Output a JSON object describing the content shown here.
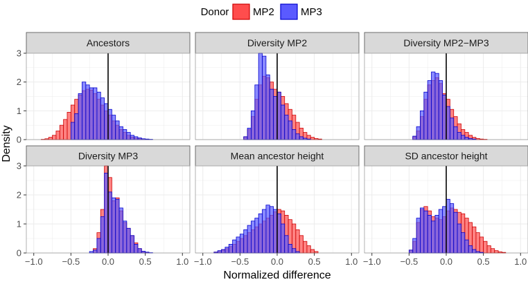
{
  "chart_data": {
    "type": "histogram",
    "xlabel": "Normalized difference",
    "ylabel": "Density",
    "legend": {
      "title": "Donor",
      "position": "top-center",
      "entries": [
        {
          "name": "MP2",
          "fill": "#ff4d4d",
          "stroke": "#cc0000"
        },
        {
          "name": "MP3",
          "fill": "#5a5aff",
          "stroke": "#0000cc"
        }
      ]
    },
    "colors": {
      "strip_bg": "#d9d9d9",
      "strip_border": "#4d4d4d",
      "grid": "#ebebeb",
      "vline": "#000000"
    },
    "xlim": [
      -1.1,
      1.1
    ],
    "ylim": [
      0,
      3.0
    ],
    "xticks": [
      -1.0,
      -0.5,
      0.0,
      0.5,
      1.0
    ],
    "xtick_labels": [
      "−1.0",
      "−0.5",
      "0.0",
      "0.5",
      "1.0"
    ],
    "yticks": [
      0,
      1,
      2,
      3
    ],
    "ytick_labels": [
      "0",
      "1",
      "2",
      "3"
    ],
    "vline_x": 0,
    "bin_width": 0.05,
    "panels": [
      {
        "title": "Ancestors",
        "series": [
          {
            "name": "MP2",
            "bin_starts": [
              -0.9,
              -0.85,
              -0.8,
              -0.75,
              -0.7,
              -0.65,
              -0.6,
              -0.55,
              -0.5,
              -0.45,
              -0.4,
              -0.35,
              -0.3,
              -0.25,
              -0.2,
              -0.15,
              -0.1,
              -0.05,
              0.0,
              0.05,
              0.1,
              0.15,
              0.2,
              0.25,
              0.3,
              0.35,
              0.4,
              0.45,
              0.5
            ],
            "values": [
              0.01,
              0.03,
              0.08,
              0.15,
              0.3,
              0.5,
              0.7,
              0.95,
              1.2,
              1.4,
              1.55,
              1.7,
              1.75,
              1.72,
              1.6,
              1.4,
              1.2,
              1.0,
              0.85,
              0.65,
              0.5,
              0.35,
              0.25,
              0.15,
              0.09,
              0.05,
              0.03,
              0.01,
              0.005
            ]
          },
          {
            "name": "MP3",
            "bin_starts": [
              -0.5,
              -0.45,
              -0.4,
              -0.35,
              -0.3,
              -0.25,
              -0.2,
              -0.15,
              -0.1,
              -0.05,
              0.0,
              0.05,
              0.1,
              0.15,
              0.2,
              0.25,
              0.3,
              0.35,
              0.4,
              0.45,
              0.5,
              0.55
            ],
            "values": [
              0.6,
              0.9,
              1.6,
              2.0,
              1.9,
              1.8,
              1.8,
              1.65,
              1.45,
              1.25,
              1.05,
              0.85,
              0.65,
              0.45,
              0.35,
              0.25,
              0.15,
              0.1,
              0.06,
              0.03,
              0.02,
              0.01
            ]
          }
        ]
      },
      {
        "title": "Diversity MP2",
        "series": [
          {
            "name": "MP2",
            "bin_starts": [
              -0.45,
              -0.4,
              -0.35,
              -0.3,
              -0.25,
              -0.2,
              -0.15,
              -0.1,
              -0.05,
              0.0,
              0.05,
              0.1,
              0.15,
              0.2,
              0.25,
              0.3,
              0.35,
              0.4,
              0.45,
              0.5,
              0.55
            ],
            "values": [
              0.1,
              0.35,
              0.8,
              1.4,
              1.9,
              2.2,
              2.15,
              2.0,
              1.75,
              1.65,
              1.5,
              1.25,
              1.05,
              0.85,
              0.6,
              0.4,
              0.25,
              0.15,
              0.08,
              0.04,
              0.02
            ]
          },
          {
            "name": "MP3",
            "bin_starts": [
              -0.45,
              -0.4,
              -0.35,
              -0.3,
              -0.25,
              -0.2,
              -0.15,
              -0.1,
              -0.05,
              0.0,
              0.05,
              0.1,
              0.15,
              0.2,
              0.25,
              0.3,
              0.35,
              0.4
            ],
            "values": [
              0.1,
              0.4,
              1.0,
              1.9,
              3.1,
              2.9,
              2.25,
              1.75,
              1.5,
              1.65,
              1.2,
              0.85,
              0.65,
              0.35,
              0.2,
              0.1,
              0.05,
              0.02
            ]
          }
        ]
      },
      {
        "title": "Diversity MP2−MP3",
        "series": [
          {
            "name": "MP2",
            "bin_starts": [
              -0.45,
              -0.4,
              -0.35,
              -0.3,
              -0.25,
              -0.2,
              -0.15,
              -0.1,
              -0.05,
              0.0,
              0.05,
              0.1,
              0.15,
              0.2,
              0.25,
              0.3,
              0.35,
              0.4,
              0.45,
              0.5
            ],
            "values": [
              0.1,
              0.3,
              0.8,
              1.4,
              1.9,
              2.05,
              2.15,
              1.95,
              1.6,
              1.4,
              1.05,
              0.8,
              0.55,
              0.35,
              0.25,
              0.15,
              0.08,
              0.04,
              0.02,
              0.01
            ]
          },
          {
            "name": "MP3",
            "bin_starts": [
              -0.45,
              -0.4,
              -0.35,
              -0.3,
              -0.25,
              -0.2,
              -0.15,
              -0.1,
              -0.05,
              0.0,
              0.05,
              0.1,
              0.15,
              0.2,
              0.25,
              0.3,
              0.35
            ],
            "values": [
              0.12,
              0.45,
              1.0,
              1.65,
              2.05,
              2.35,
              2.3,
              2.05,
              1.55,
              1.15,
              0.75,
              0.45,
              0.25,
              0.15,
              0.08,
              0.04,
              0.02
            ]
          }
        ]
      },
      {
        "title": "Diversity MP3",
        "series": [
          {
            "name": "MP2",
            "bin_starts": [
              -0.2,
              -0.15,
              -0.1,
              -0.05,
              0.0,
              0.05,
              0.1,
              0.15,
              0.2,
              0.25,
              0.3,
              0.35,
              0.4,
              0.45,
              0.5
            ],
            "values": [
              0.15,
              0.7,
              1.5,
              3.05,
              2.6,
              1.8,
              1.9,
              1.45,
              1.05,
              0.85,
              0.6,
              0.35,
              0.15,
              0.05,
              0.02
            ]
          },
          {
            "name": "MP3",
            "bin_starts": [
              -0.25,
              -0.2,
              -0.15,
              -0.1,
              -0.05,
              0.0,
              0.05,
              0.1,
              0.15,
              0.2,
              0.25,
              0.3,
              0.35,
              0.4,
              0.45,
              0.5,
              0.55
            ],
            "values": [
              0.05,
              0.1,
              0.5,
              1.25,
              2.75,
              2.1,
              1.9,
              1.85,
              1.55,
              1.1,
              0.85,
              0.6,
              0.3,
              0.15,
              0.06,
              0.03,
              0.01
            ]
          }
        ]
      },
      {
        "title": "Mean ancestor height",
        "series": [
          {
            "name": "MP2",
            "bin_starts": [
              -0.85,
              -0.8,
              -0.75,
              -0.7,
              -0.65,
              -0.6,
              -0.55,
              -0.5,
              -0.45,
              -0.4,
              -0.35,
              -0.3,
              -0.25,
              -0.2,
              -0.15,
              -0.1,
              -0.05,
              0.0,
              0.05,
              0.1,
              0.15,
              0.2,
              0.25,
              0.3,
              0.35,
              0.4,
              0.45,
              0.5
            ],
            "values": [
              0.03,
              0.05,
              0.1,
              0.15,
              0.22,
              0.3,
              0.4,
              0.5,
              0.6,
              0.7,
              0.8,
              0.9,
              1.0,
              1.1,
              1.2,
              1.3,
              1.42,
              1.5,
              1.45,
              1.3,
              1.15,
              1.0,
              0.8,
              0.6,
              0.4,
              0.25,
              0.12,
              0.05
            ]
          },
          {
            "name": "MP3",
            "bin_starts": [
              -0.85,
              -0.8,
              -0.75,
              -0.7,
              -0.65,
              -0.6,
              -0.55,
              -0.5,
              -0.45,
              -0.4,
              -0.35,
              -0.3,
              -0.25,
              -0.2,
              -0.15,
              -0.1,
              -0.05,
              0.0,
              0.05,
              0.1,
              0.15,
              0.2,
              0.25
            ],
            "values": [
              0.03,
              0.08,
              0.12,
              0.2,
              0.3,
              0.45,
              0.55,
              0.65,
              0.8,
              0.95,
              1.1,
              1.2,
              1.35,
              1.5,
              1.65,
              1.6,
              1.5,
              1.35,
              1.0,
              0.6,
              0.3,
              0.15,
              0.05
            ]
          }
        ]
      },
      {
        "title": "SD ancestor height",
        "series": [
          {
            "name": "MP2",
            "bin_starts": [
              -0.5,
              -0.45,
              -0.4,
              -0.35,
              -0.3,
              -0.25,
              -0.2,
              -0.15,
              -0.1,
              -0.05,
              0.0,
              0.05,
              0.1,
              0.15,
              0.2,
              0.25,
              0.3,
              0.35,
              0.4,
              0.45,
              0.5,
              0.55,
              0.6,
              0.65,
              0.7,
              0.75
            ],
            "values": [
              0.1,
              0.4,
              1.05,
              1.5,
              1.6,
              1.45,
              1.25,
              1.2,
              1.15,
              1.25,
              1.45,
              1.55,
              1.5,
              1.4,
              1.35,
              1.2,
              1.05,
              0.9,
              0.7,
              0.55,
              0.4,
              0.25,
              0.15,
              0.08,
              0.04,
              0.02
            ]
          },
          {
            "name": "MP3",
            "bin_starts": [
              -0.5,
              -0.45,
              -0.4,
              -0.35,
              -0.3,
              -0.25,
              -0.2,
              -0.15,
              -0.1,
              -0.05,
              0.0,
              0.05,
              0.1,
              0.15,
              0.2,
              0.25,
              0.3,
              0.35,
              0.4,
              0.45
            ],
            "values": [
              0.1,
              0.5,
              1.2,
              1.55,
              1.45,
              1.3,
              1.1,
              1.3,
              1.5,
              1.6,
              1.85,
              1.7,
              1.4,
              1.0,
              0.7,
              0.45,
              0.25,
              0.12,
              0.05,
              0.02
            ]
          }
        ]
      }
    ]
  }
}
